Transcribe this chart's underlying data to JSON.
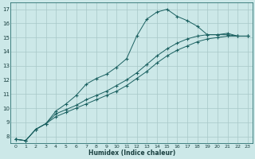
{
  "xlabel": "Humidex (Indice chaleur)",
  "ylabel": "",
  "background_color": "#cce8e8",
  "grid_color": "#a8c8c8",
  "line_color": "#1a6060",
  "xlim": [
    -0.5,
    23.5
  ],
  "ylim": [
    7.5,
    17.5
  ],
  "line1_x": [
    0,
    1,
    2,
    3,
    4,
    5,
    6,
    7,
    8,
    9,
    10,
    11,
    12,
    13,
    14,
    15,
    16,
    17,
    18,
    19,
    20,
    21,
    22,
    23
  ],
  "line1_y": [
    7.8,
    7.7,
    8.5,
    8.9,
    9.8,
    10.3,
    10.9,
    11.7,
    12.1,
    12.4,
    12.9,
    13.5,
    15.1,
    16.3,
    16.8,
    17.0,
    16.5,
    16.2,
    15.8,
    15.2,
    15.2,
    15.3,
    15.1,
    15.1
  ],
  "line2_x": [
    0,
    1,
    2,
    3,
    4,
    5,
    6,
    7,
    8,
    9,
    10,
    11,
    12,
    13,
    14,
    15,
    16,
    17,
    18,
    19,
    20,
    21,
    22,
    23
  ],
  "line2_y": [
    7.8,
    7.7,
    8.5,
    8.9,
    9.6,
    9.9,
    10.2,
    10.6,
    10.9,
    11.2,
    11.6,
    12.0,
    12.5,
    13.1,
    13.7,
    14.2,
    14.6,
    14.9,
    15.1,
    15.2,
    15.2,
    15.2,
    15.1,
    15.1
  ],
  "line3_x": [
    0,
    1,
    2,
    3,
    4,
    5,
    6,
    7,
    8,
    9,
    10,
    11,
    12,
    13,
    14,
    15,
    16,
    17,
    18,
    19,
    20,
    21,
    22,
    23
  ],
  "line3_y": [
    7.8,
    7.7,
    8.5,
    8.9,
    9.4,
    9.7,
    10.0,
    10.3,
    10.6,
    10.9,
    11.2,
    11.6,
    12.1,
    12.6,
    13.2,
    13.7,
    14.1,
    14.4,
    14.7,
    14.9,
    15.0,
    15.1,
    15.1,
    15.1
  ],
  "yticks": [
    8,
    9,
    10,
    11,
    12,
    13,
    14,
    15,
    16,
    17
  ],
  "xticks": [
    0,
    1,
    2,
    3,
    4,
    5,
    6,
    7,
    8,
    9,
    10,
    11,
    12,
    13,
    14,
    15,
    16,
    17,
    18,
    19,
    20,
    21,
    22,
    23
  ],
  "xlabel_fontsize": 5.5,
  "tick_fontsize": 4.5,
  "ytick_fontsize": 5.0
}
